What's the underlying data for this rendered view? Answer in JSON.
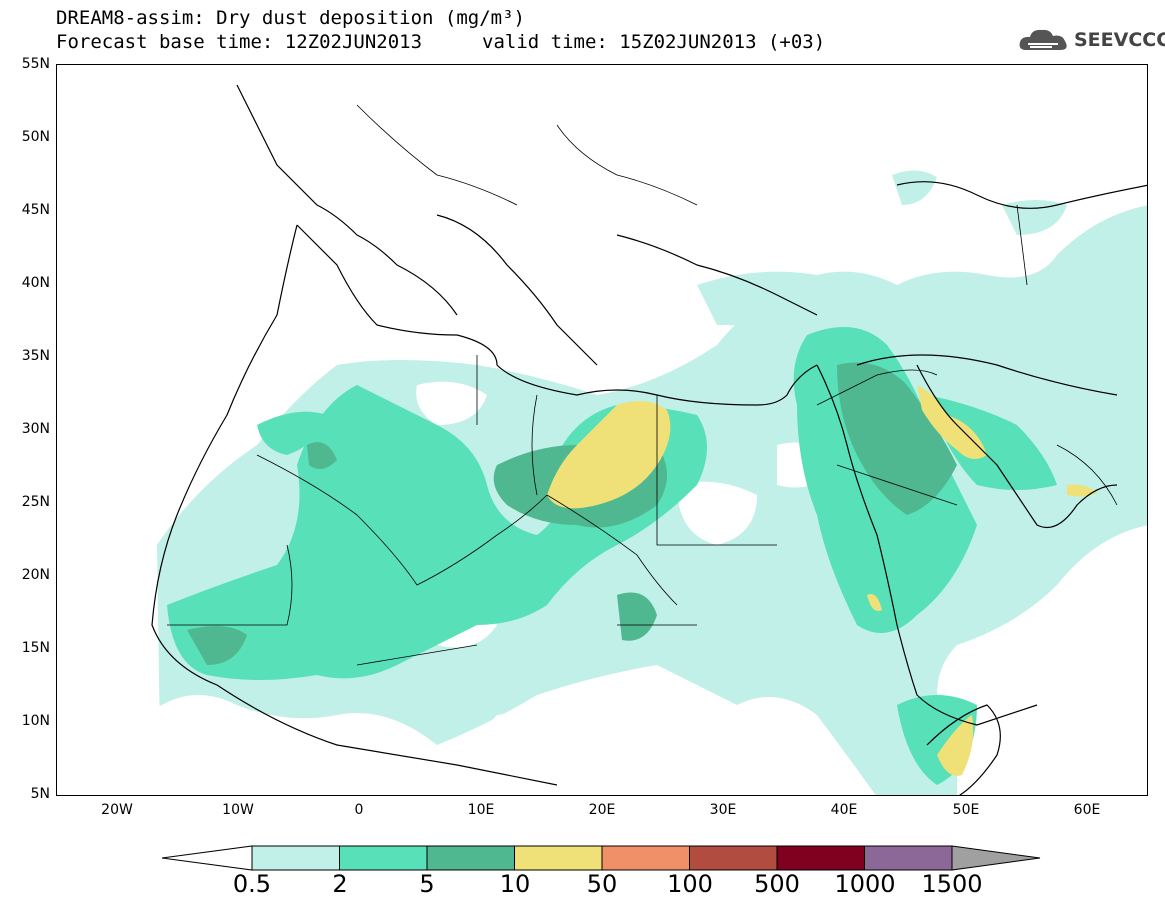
{
  "title": {
    "line1": "DREAM8-assim: Dry dust deposition (mg/m³)",
    "line2a": "Forecast base time: 12Z02JUN2013",
    "line2b": "valid time: 15Z02JUN2013 (+03)"
  },
  "logo": {
    "text": "SEEVCCC",
    "icon": "cloud-icon"
  },
  "axes": {
    "lat_labels": [
      "55N",
      "50N",
      "45N",
      "40N",
      "35N",
      "30N",
      "25N",
      "20N",
      "15N",
      "10N",
      "5N"
    ],
    "lon_labels": [
      "20W",
      "10W",
      "0",
      "10E",
      "20E",
      "30E",
      "40E",
      "50E",
      "60E"
    ],
    "lon_range": [
      -25,
      65
    ],
    "lat_range": [
      5,
      55
    ]
  },
  "colorbar": {
    "labels": [
      "0.5",
      "2",
      "5",
      "10",
      "50",
      "100",
      "500",
      "1000",
      "1500"
    ],
    "colors": [
      "#c0f0e8",
      "#58e0b8",
      "#50b890",
      "#f0e078",
      "#f09068",
      "#b04c40",
      "#800020",
      "#8c6898",
      "#a0a0a0"
    ]
  }
}
